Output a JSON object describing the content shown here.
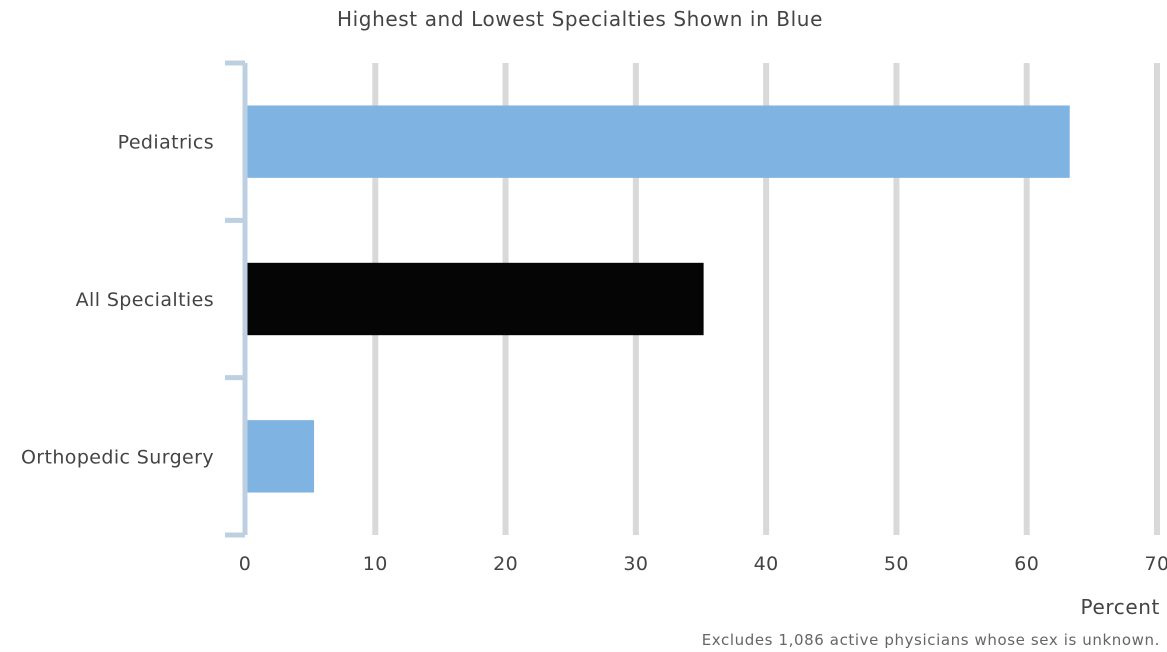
{
  "chart_data": {
    "type": "bar",
    "orientation": "horizontal",
    "title": "Highest and Lowest Specialties Shown in Blue",
    "categories": [
      "Pediatrics",
      "All Specialties",
      "Orthopedic Surgery"
    ],
    "values": [
      63.3,
      35.2,
      5.3
    ],
    "bar_colors": [
      "#7fb3e1",
      "#050505",
      "#7fb3e1"
    ],
    "xlabel": "Percent",
    "ylabel": "",
    "xlim": [
      0,
      70
    ],
    "xticks": [
      "0",
      "10",
      "20",
      "30",
      "40",
      "50",
      "60",
      "70"
    ],
    "grid": true,
    "footnote": "Excludes 1,086 active physicians whose sex is unknown."
  },
  "colors": {
    "gridline": "#d9d9d9",
    "axis": "#bcd0e1",
    "text": "#444444"
  }
}
